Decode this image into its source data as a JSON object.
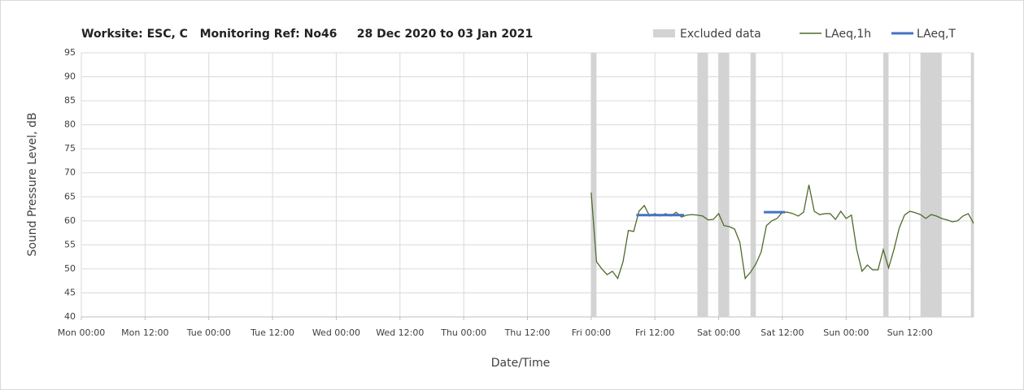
{
  "chart_data": {
    "type": "line",
    "title": "Worksite: ESC, C   Monitoring Ref: No46     28 Dec 2020 to 03 Jan 2021",
    "xlabel": "Date/Time",
    "ylabel": "Sound Pressure Level, dB",
    "xlim": [
      0,
      168
    ],
    "xticks": [
      {
        "value": 0,
        "label": "Mon 00:00"
      },
      {
        "value": 12,
        "label": "Mon 12:00"
      },
      {
        "value": 24,
        "label": "Tue 00:00"
      },
      {
        "value": 36,
        "label": "Tue 12:00"
      },
      {
        "value": 48,
        "label": "Wed 00:00"
      },
      {
        "value": 60,
        "label": "Wed 12:00"
      },
      {
        "value": 72,
        "label": "Thu 00:00"
      },
      {
        "value": 84,
        "label": "Thu 12:00"
      },
      {
        "value": 96,
        "label": "Fri 00:00"
      },
      {
        "value": 108,
        "label": "Fri 12:00"
      },
      {
        "value": 120,
        "label": "Sat 00:00"
      },
      {
        "value": 132,
        "label": "Sat 12:00"
      },
      {
        "value": 144,
        "label": "Sun 00:00"
      },
      {
        "value": 156,
        "label": "Sun 12:00"
      }
    ],
    "ylim": [
      40,
      95
    ],
    "yticks": [
      40,
      45,
      50,
      55,
      60,
      65,
      70,
      75,
      80,
      85,
      90,
      95
    ],
    "grid": true,
    "legend": "top-right",
    "excluded": {
      "name": "Excluded data",
      "color": "#d3d3d3",
      "bands": [
        [
          96,
          97
        ],
        [
          116,
          118
        ],
        [
          120,
          122
        ],
        [
          126,
          127
        ],
        [
          151,
          152
        ],
        [
          158,
          162
        ],
        [
          167.5,
          168
        ]
      ]
    },
    "series": [
      {
        "name": "LAeq,1h",
        "color": "#4f6b2a",
        "x": [
          96,
          97,
          98,
          99,
          100,
          101,
          102,
          103,
          104,
          105,
          106,
          107,
          108,
          109,
          110,
          111,
          112,
          113,
          114,
          115,
          116,
          117,
          118,
          119,
          120,
          121,
          122,
          123,
          124,
          125,
          126,
          127,
          128,
          129,
          130,
          131,
          132,
          133,
          134,
          135,
          136,
          137,
          138,
          139,
          140,
          141,
          142,
          143,
          144,
          145,
          146,
          147,
          148,
          149,
          150,
          151,
          152,
          153,
          154,
          155,
          156,
          157,
          158,
          159,
          160,
          161,
          162,
          163,
          164,
          165,
          166,
          167,
          168
        ],
        "values": [
          65.9,
          51.5,
          50,
          48.8,
          49.5,
          48,
          51.5,
          58,
          57.8,
          62,
          63.2,
          61,
          61.5,
          61,
          61.5,
          61,
          61.8,
          60.8,
          61.2,
          61.3,
          61.2,
          61,
          60.2,
          60.3,
          61.5,
          59,
          58.8,
          58.3,
          55.5,
          48,
          49.3,
          51,
          53.5,
          59,
          60,
          60.5,
          61.8,
          61.8,
          61.5,
          61,
          61.8,
          67.5,
          62,
          61.3,
          61.5,
          61.5,
          60.3,
          62,
          60.5,
          61.2,
          54,
          49.5,
          50.8,
          49.8,
          49.8,
          54,
          50.2,
          54,
          58.5,
          61.2,
          62,
          61.7,
          61.3,
          60.5,
          61.3,
          61,
          60.5,
          60.2,
          59.8,
          60,
          61,
          61.5,
          59.5
        ]
      },
      {
        "name": "LAeq,T",
        "color": "#4472c4",
        "segments": [
          {
            "x": [
              104.5,
              113.5
            ],
            "values": [
              61.2,
              61.2
            ]
          },
          {
            "x": [
              128.5,
              132.5
            ],
            "values": [
              61.8,
              61.8
            ]
          }
        ]
      }
    ]
  }
}
